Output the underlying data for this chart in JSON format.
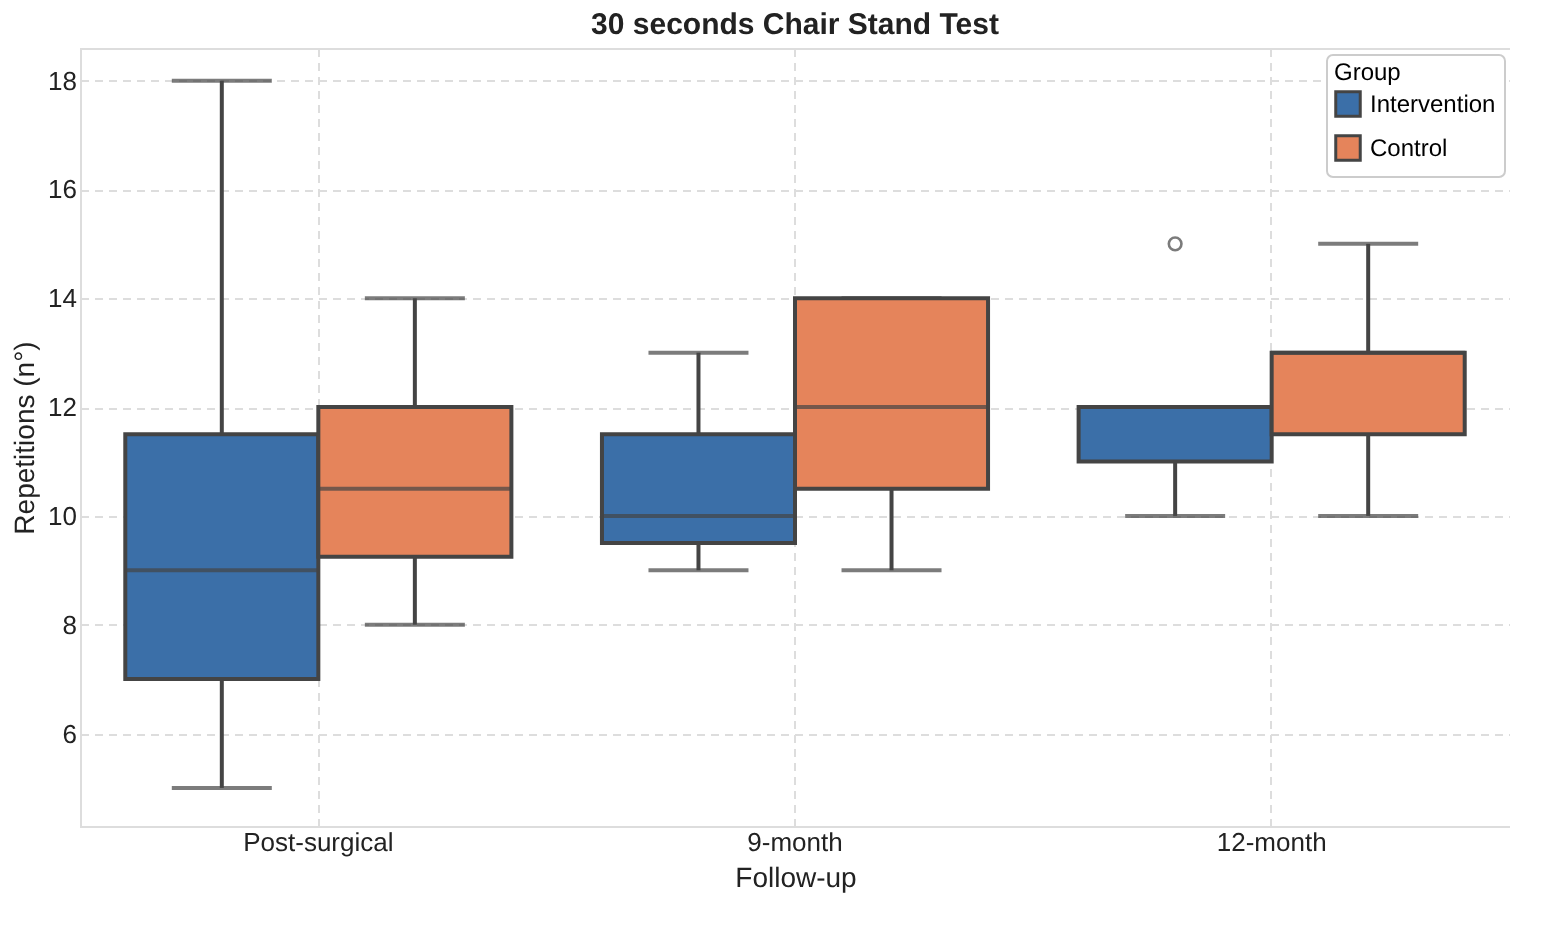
{
  "chart_data": {
    "type": "box",
    "title": "30 seconds Chair Stand Test",
    "xlabel": "Follow-up",
    "ylabel": "Repetitions (n°)",
    "legend_title": "Group",
    "categories": [
      "Post-surgical",
      "9-month",
      "12-month"
    ],
    "series": [
      {
        "name": "Intervention",
        "color": "#3b6fa8",
        "boxes": [
          {
            "low": 5,
            "q1": 7,
            "median": 9,
            "q3": 11.5,
            "high": 18
          },
          {
            "low": 9,
            "q1": 9.5,
            "median": 10,
            "q3": 11.5,
            "high": 13
          },
          {
            "low": 10,
            "q1": 11,
            "median": 12,
            "q3": 12,
            "high": 12,
            "outliers": [
              15
            ]
          }
        ]
      },
      {
        "name": "Control",
        "color": "#e5845b",
        "boxes": [
          {
            "low": 8,
            "q1": 9.25,
            "median": 10.5,
            "q3": 12,
            "high": 14
          },
          {
            "low": 9,
            "q1": 10.5,
            "median": 12,
            "q3": 14,
            "high": 14
          },
          {
            "low": 10,
            "q1": 11.5,
            "median": 13,
            "q3": 13,
            "high": 15
          }
        ]
      }
    ],
    "ylim": [
      4.3,
      18.6
    ],
    "yticks": [
      6,
      8,
      10,
      12,
      14,
      16,
      18
    ],
    "grid": true,
    "legend": "top right"
  }
}
